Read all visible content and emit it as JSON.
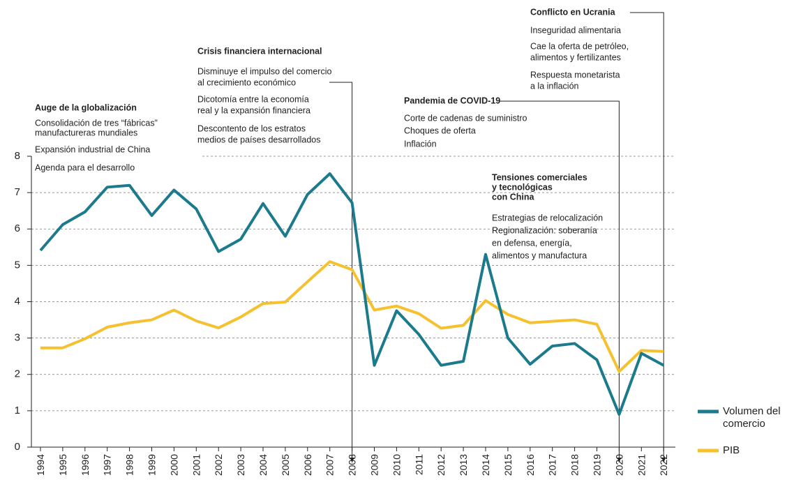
{
  "chart_data": {
    "type": "line",
    "categories": [
      "1994",
      "1995",
      "1996",
      "1997",
      "1998",
      "1999",
      "2000",
      "2001",
      "2002",
      "2003",
      "2004",
      "2005",
      "2006",
      "2007",
      "2008",
      "2009",
      "2010",
      "2011",
      "2012",
      "2013",
      "2014",
      "2015",
      "2016",
      "2017",
      "2018",
      "2019",
      "2020",
      "2021",
      "2022"
    ],
    "series": [
      {
        "name": "Volumen del comercio",
        "color": "#1b7a8c",
        "values": [
          5.41,
          6.12,
          6.47,
          7.15,
          7.2,
          6.37,
          7.07,
          6.55,
          5.38,
          5.72,
          6.7,
          5.8,
          6.95,
          7.52,
          6.72,
          2.25,
          3.75,
          3.1,
          2.25,
          2.36,
          5.3,
          3.0,
          2.28,
          2.78,
          2.85,
          2.4,
          0.9,
          2.58,
          2.25
        ]
      },
      {
        "name": "PIB",
        "color": "#f6c12f",
        "values": [
          2.73,
          2.73,
          2.98,
          3.3,
          3.42,
          3.5,
          3.77,
          3.47,
          3.28,
          3.58,
          3.95,
          3.99,
          4.55,
          5.1,
          4.88,
          3.77,
          3.88,
          3.67,
          3.27,
          3.35,
          4.03,
          3.65,
          3.42,
          3.46,
          3.5,
          3.38,
          2.08,
          2.66,
          2.63
        ]
      }
    ],
    "ylim": [
      0,
      8
    ],
    "yticks": [
      0,
      1,
      2,
      3,
      4,
      5,
      6,
      7,
      8
    ],
    "grid": true,
    "legend": "lower right",
    "annotations": [
      {
        "title": [
          "Auge de la globalización"
        ],
        "items": [
          [
            "Consolidación de tres “fábricas”",
            "manufactureras mundiales"
          ],
          [
            "Expansión industrial de China"
          ],
          [
            "Agenda para el desarrollo"
          ]
        ]
      },
      {
        "title": [
          "Crisis financiera internacional"
        ],
        "items": [
          [
            "Disminuye el impulso del comercio",
            "al crecimiento económico"
          ],
          [
            "Dicotomía entre la economía",
            "real y la expansión financiera"
          ],
          [
            "Descontento de los estratos",
            "medios de países desarrollados"
          ]
        ]
      },
      {
        "title": [
          "Pandemia de COVID-19"
        ],
        "items": [
          [
            "Corte de cadenas de suministro"
          ],
          [
            "Choques de oferta"
          ],
          [
            "Inflación"
          ]
        ]
      },
      {
        "title": [
          "Tensiones comerciales",
          "y tecnológicas",
          "con China"
        ],
        "items": [
          [
            "Estrategias de relocalización"
          ],
          [
            "Regionalización: soberanía",
            "en defensa, energía,",
            "alimentos y manufactura"
          ]
        ]
      },
      {
        "title": [
          "Conflicto en Ucrania"
        ],
        "items": [
          [
            "Inseguridad alimentaria"
          ],
          [
            "Cae la oferta de petróleo,",
            "alimentos y fertilizantes"
          ],
          [
            "Respuesta monetarista",
            "a la inflación"
          ]
        ]
      }
    ]
  }
}
